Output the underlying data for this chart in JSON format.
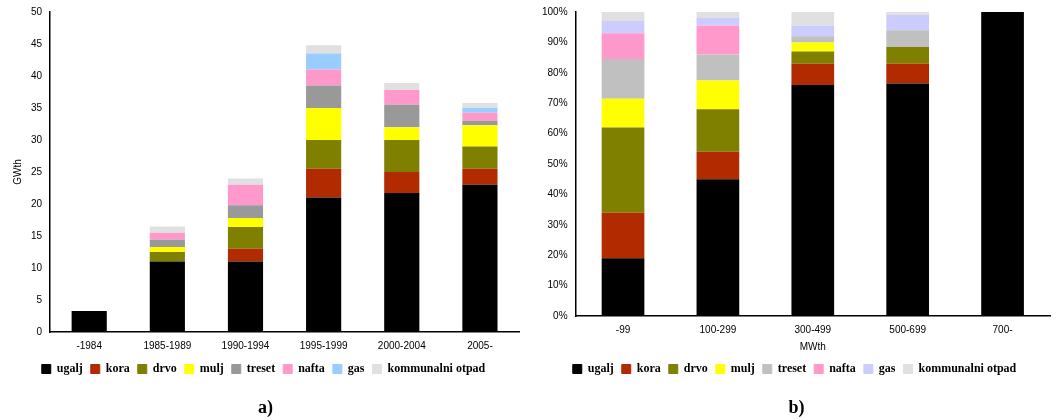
{
  "chart_data": [
    {
      "type": "bar",
      "stacked": true,
      "ylabel": "GWth",
      "categories": [
        "-1984",
        "1985-1989",
        "1990-1994",
        "1995-1999",
        "2000-2004",
        "2005-"
      ],
      "ylim": [
        0,
        50
      ],
      "yticks": [
        0,
        5,
        10,
        15,
        20,
        25,
        30,
        35,
        40,
        45,
        50
      ],
      "grid": false,
      "legend": "bottom",
      "annotations": [
        "a)"
      ],
      "series": [
        {
          "name": "ugalj",
          "color": "#000000",
          "values": [
            3.3,
            11,
            11,
            21,
            21.7,
            23
          ]
        },
        {
          "name": "kora",
          "color": "#b22a00",
          "values": [
            null,
            null,
            2,
            4.5,
            3.3,
            2.5
          ]
        },
        {
          "name": "drvo",
          "color": "#808000",
          "values": [
            null,
            1.5,
            3.4,
            4.5,
            5,
            3.5
          ]
        },
        {
          "name": "mulj",
          "color": "#ffff00",
          "values": [
            null,
            0.8,
            1.4,
            5,
            2,
            3.3
          ]
        },
        {
          "name": "treset",
          "color": "#999999",
          "values": [
            null,
            1.1,
            2,
            3.5,
            3.5,
            0.7
          ]
        },
        {
          "name": "nafta",
          "color": "#ff99cc",
          "values": [
            null,
            1.1,
            3.2,
            2.5,
            2.3,
            1.3
          ]
        },
        {
          "name": "gas",
          "color": "#99ccff",
          "values": [
            null,
            null,
            null,
            2.5,
            null,
            0.7
          ]
        },
        {
          "name": "kommunalni otpad",
          "color": "#e0e0e0",
          "values": [
            null,
            1,
            1,
            1.3,
            1.1,
            0.8
          ]
        }
      ]
    },
    {
      "type": "bar",
      "stacked": true,
      "xlabel": "MWth",
      "categories": [
        "-99",
        "100-299",
        "300-499",
        "500-699",
        "700-"
      ],
      "ylim": [
        0,
        100
      ],
      "yticks": [
        {
          "value": 0,
          "label": "0%"
        },
        {
          "value": 10,
          "label": "10%"
        },
        {
          "value": 20,
          "label": "20%"
        },
        {
          "value": 30,
          "label": "30%"
        },
        {
          "value": 40,
          "label": "40%"
        },
        {
          "value": 50,
          "label": "50%"
        },
        {
          "value": 60,
          "label": "60%"
        },
        {
          "value": 70,
          "label": "70%"
        },
        {
          "value": 80,
          "label": "80%"
        },
        {
          "value": 90,
          "label": "90%"
        },
        {
          "value": 100,
          "label": "100%"
        }
      ],
      "grid": false,
      "legend": "bottom",
      "annotations": [
        "b)"
      ],
      "series": [
        {
          "name": "ugalj",
          "color": "#000000",
          "values": [
            19,
            45,
            76,
            76.5,
            100
          ]
        },
        {
          "name": "kora",
          "color": "#b22a00",
          "values": [
            15,
            9,
            7,
            6.5,
            null
          ]
        },
        {
          "name": "drvo",
          "color": "#808000",
          "values": [
            28,
            14,
            4,
            5.5,
            null
          ]
        },
        {
          "name": "mulj",
          "color": "#ffff00",
          "values": [
            9.5,
            9.5,
            3,
            null,
            null
          ]
        },
        {
          "name": "treset",
          "color": "#c0c0c0",
          "values": [
            13,
            8.5,
            2,
            5.5,
            null
          ]
        },
        {
          "name": "nafta",
          "color": "#ff99cc",
          "values": [
            8.5,
            9.5,
            null,
            null,
            null
          ]
        },
        {
          "name": "gas",
          "color": "#ccccff",
          "values": [
            4,
            2.5,
            3.5,
            5,
            null
          ]
        },
        {
          "name": "kommunalni otpad",
          "color": "#e0e0e0",
          "values": [
            3,
            2,
            4.5,
            1,
            null
          ]
        }
      ]
    }
  ]
}
